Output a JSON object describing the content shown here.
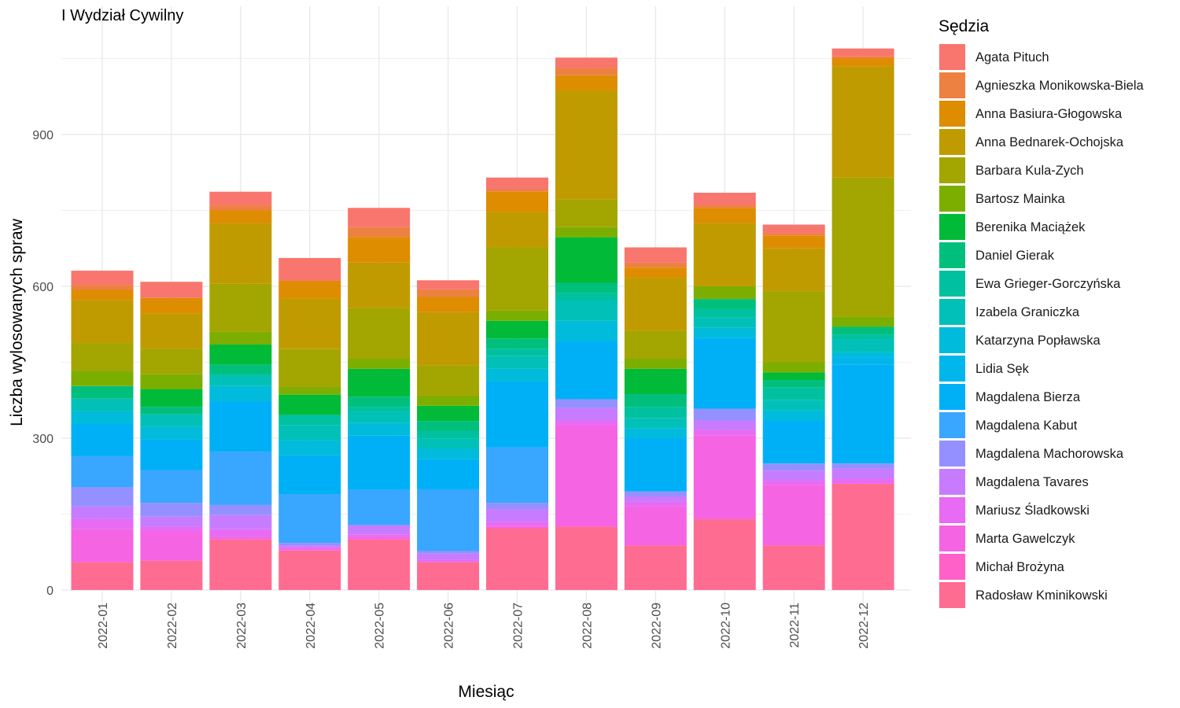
{
  "chart_data": {
    "type": "bar",
    "stacked": true,
    "title": "I Wydział Cywilny",
    "xlabel": "Miesiąc",
    "ylabel": "Liczba wylosowanych spraw",
    "ylim": [
      0,
      1100
    ],
    "yticks": [
      0,
      300,
      600,
      900
    ],
    "grid": true,
    "legend_position": "right",
    "legend_title": "Sędzia",
    "categories": [
      "2022-01",
      "2022-02",
      "2022-03",
      "2022-04",
      "2022-05",
      "2022-06",
      "2022-07",
      "2022-08",
      "2022-09",
      "2022-10",
      "2022-11",
      "2022-12"
    ],
    "series": [
      {
        "name": "Radosław Kminikowski",
        "color": "#FF6C91",
        "values": [
          55,
          58,
          100,
          78,
          100,
          55,
          122,
          125,
          88,
          140,
          88,
          210
        ]
      },
      {
        "name": "Michał Brożyna",
        "color": "#FF61C9",
        "values": [
          0,
          0,
          0,
          0,
          0,
          0,
          0,
          0,
          0,
          0,
          0,
          0
        ]
      },
      {
        "name": "Marta Gawelczyk",
        "color": "#F564E3",
        "values": [
          65,
          57,
          5,
          2,
          5,
          0,
          5,
          200,
          77,
          165,
          120,
          0
        ]
      },
      {
        "name": "Mariusz Śladkowski",
        "color": "#E76BF3",
        "values": [
          20,
          10,
          15,
          5,
          5,
          5,
          8,
          10,
          10,
          12,
          8,
          10
        ]
      },
      {
        "name": "Magdalena Tavares",
        "color": "#C77CFF",
        "values": [
          25,
          20,
          28,
          3,
          18,
          12,
          25,
          25,
          10,
          18,
          20,
          20
        ]
      },
      {
        "name": "Magdalena Machorowska",
        "color": "#9590FF",
        "values": [
          38,
          27,
          20,
          5,
          0,
          5,
          12,
          17,
          10,
          23,
          14,
          10
        ]
      },
      {
        "name": "Magdalena Kabut",
        "color": "#39A6FF",
        "values": [
          62,
          65,
          105,
          96,
          70,
          122,
          110,
          0,
          0,
          0,
          0,
          0
        ]
      },
      {
        "name": "Magdalena Bierza",
        "color": "#00B0F6",
        "values": [
          63,
          60,
          100,
          77,
          107,
          60,
          130,
          115,
          105,
          140,
          85,
          195
        ]
      },
      {
        "name": "Lidia Sęk",
        "color": "#00B6EB",
        "values": [
          0,
          0,
          0,
          0,
          0,
          0,
          0,
          0,
          0,
          0,
          0,
          15
        ]
      },
      {
        "name": "Katarzyna Popławska",
        "color": "#00BBDB",
        "values": [
          25,
          25,
          30,
          30,
          25,
          20,
          25,
          40,
          20,
          20,
          20,
          10
        ]
      },
      {
        "name": "Izabela Graniczka",
        "color": "#00C0B8",
        "values": [
          25,
          25,
          22,
          30,
          22,
          20,
          25,
          40,
          20,
          20,
          20,
          25
        ]
      },
      {
        "name": "Ewa Grieger-Gorczyńska",
        "color": "#00C19F",
        "values": [
          0,
          0,
          0,
          20,
          10,
          15,
          15,
          15,
          22,
          17,
          25,
          10
        ]
      },
      {
        "name": "Daniel Gierak",
        "color": "#00BF7D",
        "values": [
          25,
          15,
          20,
          0,
          20,
          20,
          20,
          20,
          25,
          20,
          15,
          15
        ]
      },
      {
        "name": "Berenika Maciążek",
        "color": "#00BA38",
        "values": [
          0,
          35,
          40,
          40,
          55,
          30,
          35,
          90,
          50,
          0,
          15,
          0
        ]
      },
      {
        "name": "Bartosz Mainka",
        "color": "#7CAE00",
        "values": [
          30,
          30,
          25,
          15,
          20,
          20,
          20,
          20,
          20,
          25,
          20,
          20
        ]
      },
      {
        "name": "Barbara Kula-Zych",
        "color": "#A3A500",
        "values": [
          55,
          50,
          95,
          75,
          100,
          60,
          125,
          55,
          55,
          0,
          140,
          275
        ]
      },
      {
        "name": "Anna Bednarek-Ochojska",
        "color": "#C09B00",
        "values": [
          85,
          70,
          120,
          100,
          90,
          105,
          70,
          215,
          105,
          125,
          85,
          220
        ]
      },
      {
        "name": "Anna Basiura-Głogowska",
        "color": "#DE8C00",
        "values": [
          20,
          30,
          25,
          35,
          50,
          30,
          40,
          30,
          20,
          30,
          25,
          15
        ]
      },
      {
        "name": "Agnieszka Monikowska-Biela",
        "color": "#ED8141",
        "values": [
          10,
          0,
          10,
          0,
          20,
          15,
          5,
          15,
          10,
          5,
          5,
          5
        ]
      },
      {
        "name": "Agata Pituch",
        "color": "#F8766D",
        "values": [
          28,
          32,
          27,
          45,
          38,
          18,
          23,
          20,
          30,
          25,
          17,
          15
        ]
      }
    ],
    "legend_order": [
      "Agata Pituch",
      "Agnieszka Monikowska-Biela",
      "Anna Basiura-Głogowska",
      "Anna Bednarek-Ochojska",
      "Barbara Kula-Zych",
      "Bartosz Mainka",
      "Berenika Maciążek",
      "Daniel Gierak",
      "Ewa Grieger-Gorczyńska",
      "Izabela Graniczka",
      "Katarzyna Popławska",
      "Lidia Sęk",
      "Magdalena Bierza",
      "Magdalena Kabut",
      "Magdalena Machorowska",
      "Magdalena Tavares",
      "Mariusz Śladkowski",
      "Marta Gawelczyk",
      "Michał Brożyna",
      "Radosław Kminikowski"
    ]
  }
}
